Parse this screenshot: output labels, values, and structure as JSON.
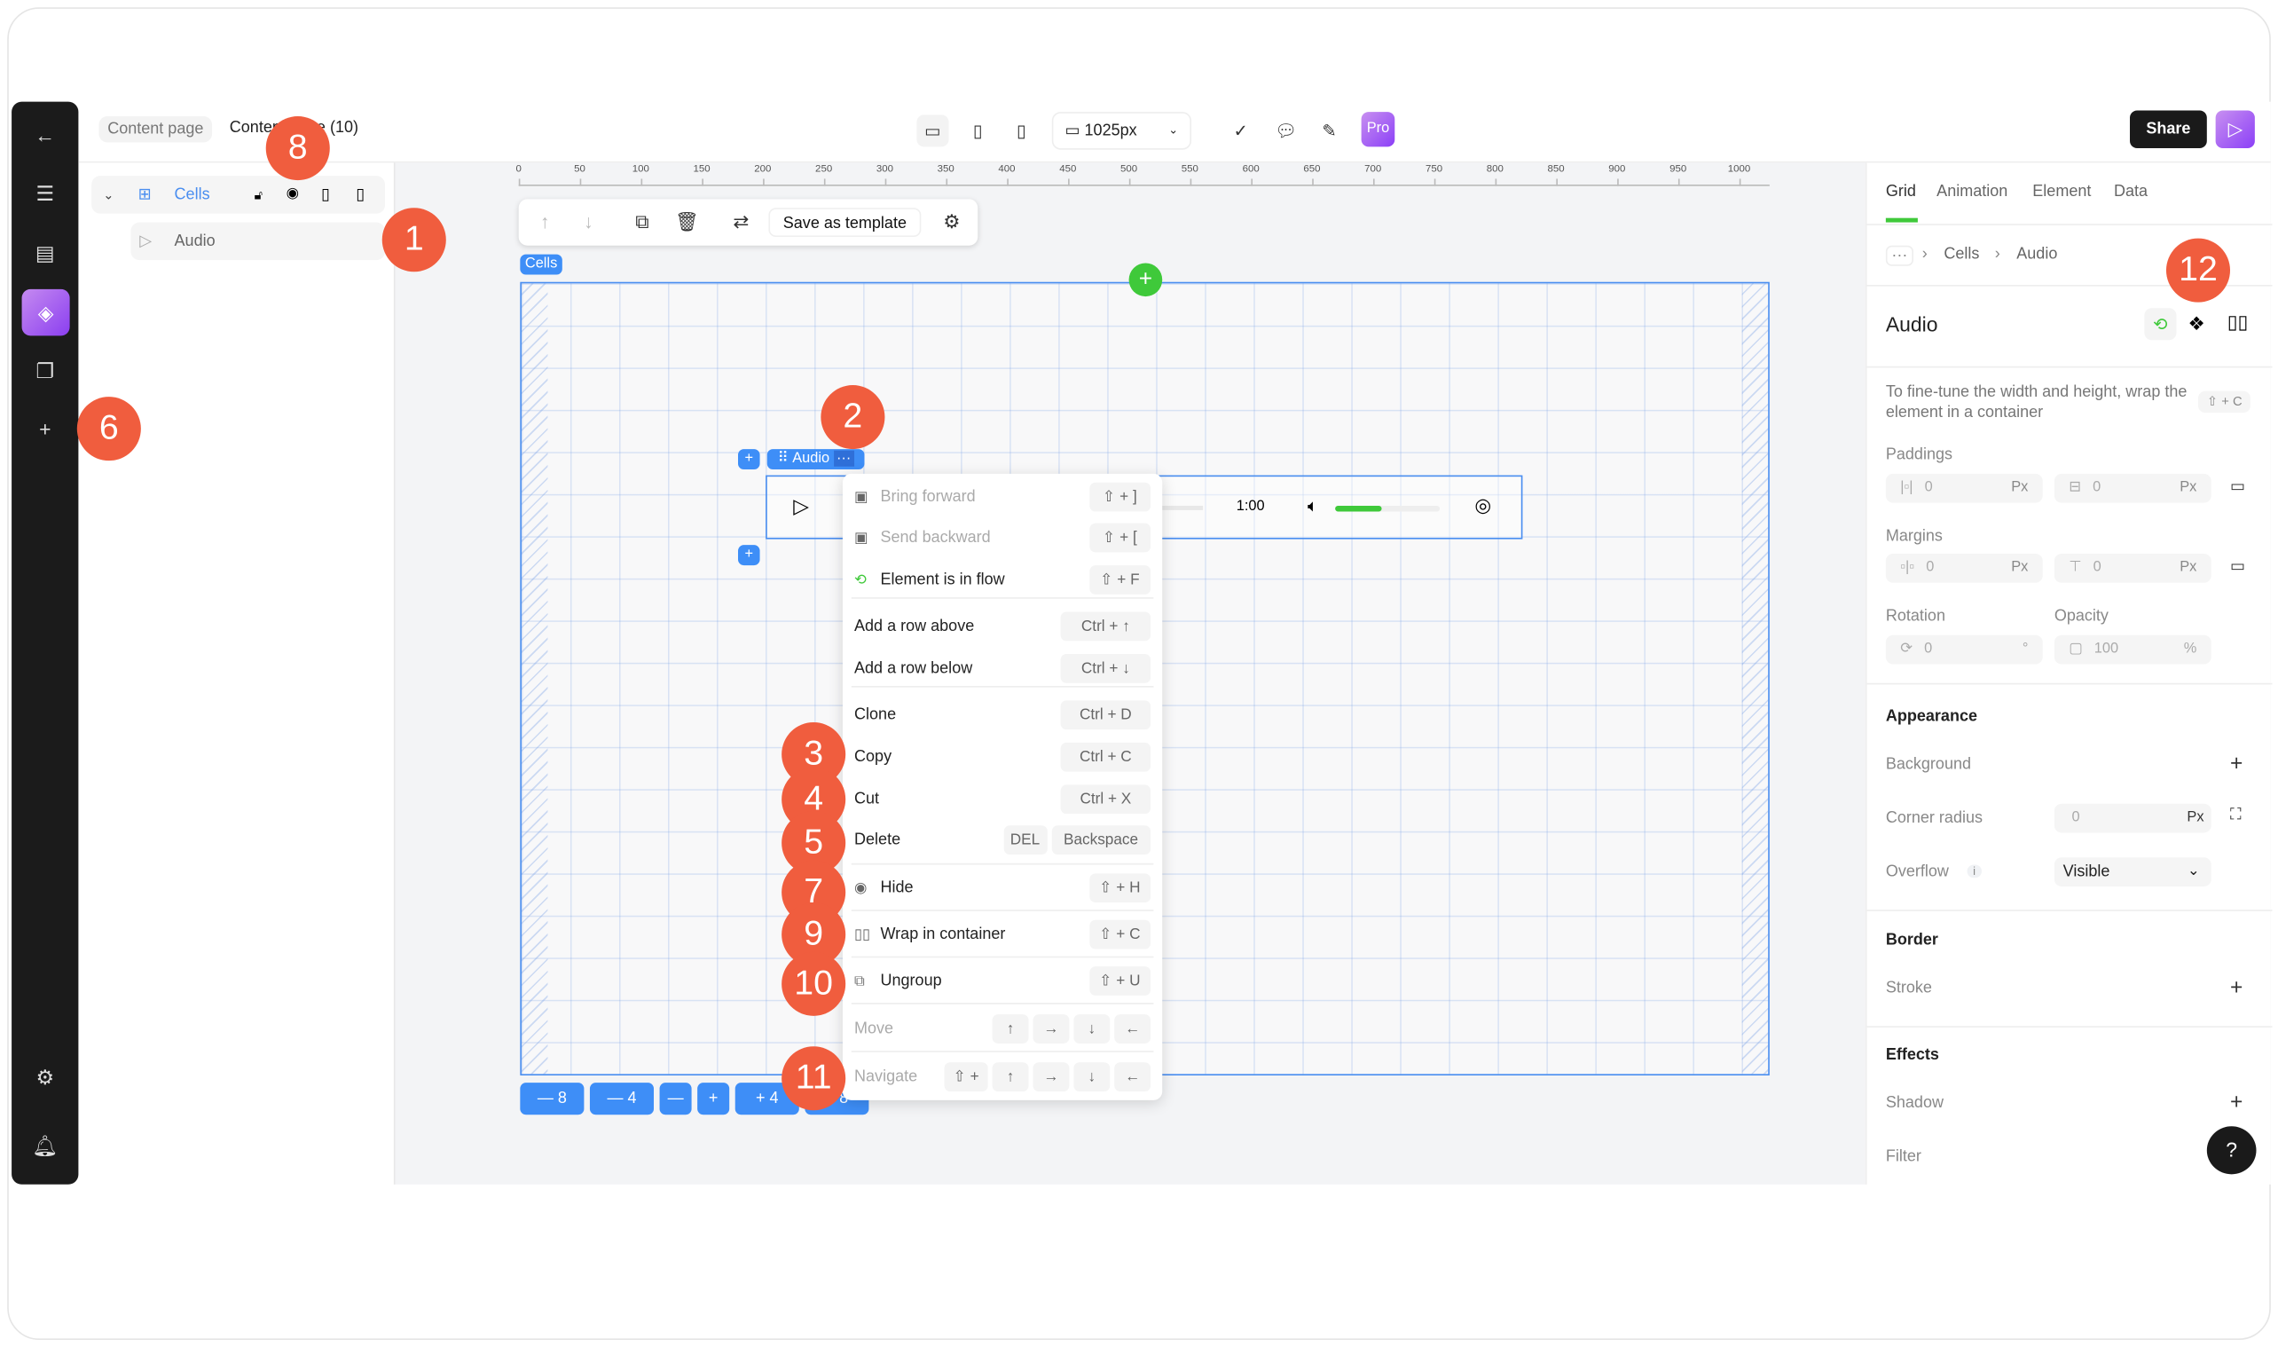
{
  "topbar": {
    "breadcrumb_page": "Content page",
    "breadcrumb_current": "Content page (10)",
    "width_value": "1025px",
    "pro_label": "Pro",
    "share_label": "Share"
  },
  "layers": {
    "items": [
      {
        "label": "Cells",
        "icon": "grid-icon"
      },
      {
        "label": "Audio",
        "icon": "play-icon"
      }
    ]
  },
  "ruler": {
    "ticks": [
      "0",
      "50",
      "100",
      "150",
      "200",
      "250",
      "300",
      "350",
      "400",
      "450",
      "500",
      "550",
      "600",
      "650",
      "700",
      "750",
      "800",
      "850",
      "900",
      "950",
      "1000"
    ]
  },
  "toolbar": {
    "save_template_label": "Save as template"
  },
  "canvas": {
    "cells_tag": "Cells",
    "audio_tag": "Audio",
    "audio_time": "1:00",
    "volume_percent": 45,
    "bottom_buttons": [
      "— 8",
      "— 4",
      "—",
      "+",
      "+ 4",
      "+ 8"
    ]
  },
  "context_menu": {
    "items": [
      {
        "label": "Bring forward",
        "shortcut": [
          "⇧ + ]"
        ],
        "disabled": true
      },
      {
        "label": "Send backward",
        "shortcut": [
          "⇧ + ["
        ],
        "disabled": true
      },
      {
        "label": "Element is in flow",
        "shortcut": [
          "⇧ + F"
        ]
      },
      {
        "label": "Add a row above",
        "shortcut": [
          "Ctrl + ↑"
        ]
      },
      {
        "label": "Add a row below",
        "shortcut": [
          "Ctrl + ↓"
        ]
      },
      {
        "label": "Clone",
        "shortcut": [
          "Ctrl + D"
        ]
      },
      {
        "label": "Copy",
        "shortcut": [
          "Ctrl + C"
        ]
      },
      {
        "label": "Cut",
        "shortcut": [
          "Ctrl + X"
        ]
      },
      {
        "label": "Delete",
        "shortcut": [
          "DEL",
          "Backspace"
        ]
      },
      {
        "label": "Hide",
        "shortcut": [
          "⇧ + H"
        ]
      },
      {
        "label": "Wrap in container",
        "shortcut": [
          "⇧ + C"
        ]
      },
      {
        "label": "Ungroup",
        "shortcut": [
          "⇧ + U"
        ]
      },
      {
        "label": "Move",
        "shortcut": [
          "↑",
          "→",
          "↓",
          "←"
        ],
        "disabled": true
      },
      {
        "label": "Navigate",
        "shortcut": [
          "⇧ +",
          "↑",
          "→",
          "↓",
          "←"
        ],
        "disabled": true
      }
    ]
  },
  "right_panel": {
    "tabs": [
      "Grid",
      "Animation",
      "Element",
      "Data"
    ],
    "active_tab": "Grid",
    "breadcrumb": [
      "···",
      "Cells",
      "Audio"
    ],
    "title": "Audio",
    "hint": "To fine-tune the width and height, wrap the element in a container",
    "hint_shortcut": "⇧ + C",
    "paddings_label": "Paddings",
    "padding_h": "0",
    "padding_v": "0",
    "unit": "Px",
    "margins_label": "Margins",
    "margin_h": "0",
    "margin_v": "0",
    "rotation_label": "Rotation",
    "rotation": "0",
    "rotation_unit": "°",
    "opacity_label": "Opacity",
    "opacity": "100",
    "opacity_unit": "%",
    "appearance": "Appearance",
    "background": "Background",
    "corner_radius": "Corner radius",
    "corner_value": "0",
    "overflow": "Overflow",
    "overflow_value": "Visible",
    "border": "Border",
    "stroke": "Stroke",
    "effects": "Effects",
    "shadow": "Shadow",
    "filter": "Filter",
    "help": "?"
  },
  "badges": [
    "1",
    "2",
    "3",
    "4",
    "5",
    "6",
    "7",
    "8",
    "9",
    "10",
    "11",
    "12"
  ],
  "colors": {
    "accent": "#3e8ef7",
    "badge": "#f05d3e",
    "green": "#3fc93a",
    "pro": "#8b3ff7"
  }
}
